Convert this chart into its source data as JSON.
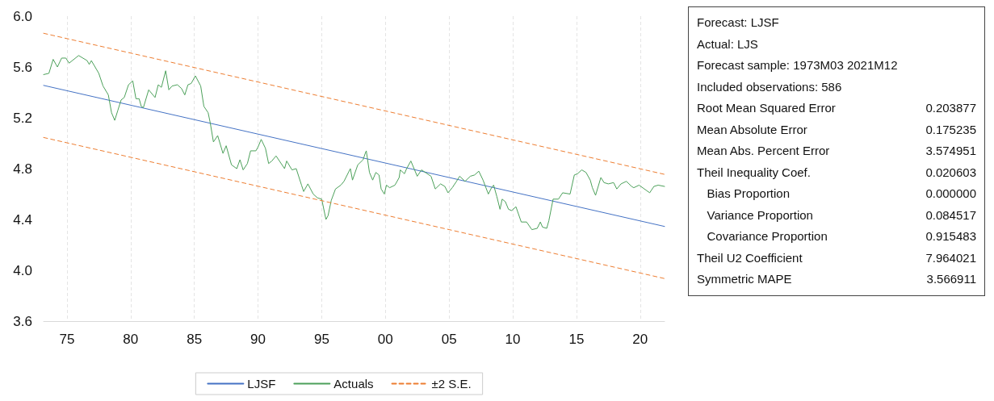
{
  "chart_data": {
    "type": "line",
    "marker": "none",
    "grid": "x",
    "legend": "bottom",
    "xlim": [
      "1973-03",
      "2021-12"
    ],
    "xticks": [
      {
        "value": "1975",
        "label": "75"
      },
      {
        "value": "1980",
        "label": "80"
      },
      {
        "value": "1985",
        "label": "85"
      },
      {
        "value": "1990",
        "label": "90"
      },
      {
        "value": "1995",
        "label": "95"
      },
      {
        "value": "2000",
        "label": "00"
      },
      {
        "value": "2005",
        "label": "05"
      },
      {
        "value": "2010",
        "label": "10"
      },
      {
        "value": "2015",
        "label": "15"
      },
      {
        "value": "2020",
        "label": "20"
      }
    ],
    "ylim": [
      3.6,
      6.0
    ],
    "yticks": [
      3.6,
      {
        "value": 4,
        "label": "4.0"
      },
      4.4,
      4.8,
      5.2,
      5.6,
      {
        "value": 6,
        "label": "6.0"
      }
    ],
    "series": [
      {
        "name": "LJSF",
        "color": "#4472c4",
        "line_style": "solid",
        "x": [
          "1973-03",
          "2021-12"
        ],
        "values": [
          5.455,
          4.345
        ]
      },
      {
        "name": "Actuals",
        "color": "#4ca05a",
        "line_style": "solid",
        "x": [
          "1973-03",
          "1973-08",
          "1973-12",
          "1974-04",
          "1974-08",
          "1974-12",
          "1975-03",
          "1975-12",
          "1976-08",
          "1976-10",
          "1976-12",
          "1977-07",
          "1977-11",
          "1978-04",
          "1978-07",
          "1978-10",
          "1979-01",
          "1979-04",
          "1979-07",
          "1979-11",
          "1980-03",
          "1980-06",
          "1980-09",
          "1980-11",
          "1981-01",
          "1981-06",
          "1981-12",
          "1982-03",
          "1982-06",
          "1982-10",
          "1983-01",
          "1983-04",
          "1983-09",
          "1984-01",
          "1984-04",
          "1984-07",
          "1984-10",
          "1985-02",
          "1985-07",
          "1985-10",
          "1986-02",
          "1986-04",
          "1986-07",
          "1986-11",
          "1987-04",
          "1987-07",
          "1987-12",
          "1988-05",
          "1988-08",
          "1988-11",
          "1989-03",
          "1989-06",
          "1989-11",
          "1990-01",
          "1990-04",
          "1990-08",
          "1990-11",
          "1991-02",
          "1991-06",
          "1992-02",
          "1992-04",
          "1992-09",
          "1993-01",
          "1993-06",
          "1993-08",
          "1993-12",
          "1994-05",
          "1994-09",
          "1995-01",
          "1995-05",
          "1995-07",
          "1995-10",
          "1996-02",
          "1996-07",
          "1996-10",
          "1997-04",
          "1997-06",
          "1997-11",
          "1998-04",
          "1998-06",
          "1998-07",
          "1998-10",
          "1999-01",
          "1999-04",
          "1999-07",
          "1999-09",
          "1999-12",
          "2000-02",
          "2000-05",
          "2000-10",
          "2001-02",
          "2001-03",
          "2001-07",
          "2001-09",
          "2002-01",
          "2002-04",
          "2002-07",
          "2002-11",
          "2003-08",
          "2003-12",
          "2004-05",
          "2004-09",
          "2004-12",
          "2005-04",
          "2005-08",
          "2005-11",
          "2006-04",
          "2006-09",
          "2007-01",
          "2007-05",
          "2007-09",
          "2008-02",
          "2008-05",
          "2008-07",
          "2008-10",
          "2009-01",
          "2009-03",
          "2009-06",
          "2009-09",
          "2009-12",
          "2010-04",
          "2010-09",
          "2011-02",
          "2011-07",
          "2011-12",
          "2012-03",
          "2012-05",
          "2012-09",
          "2012-11",
          "2013-03",
          "2013-08",
          "2013-12",
          "2014-07",
          "2014-11",
          "2015-02",
          "2015-06",
          "2015-10",
          "2016-02",
          "2016-04",
          "2016-07",
          "2016-12",
          "2017-03",
          "2017-07",
          "2017-12",
          "2018-03",
          "2018-07",
          "2018-12",
          "2019-05",
          "2019-07",
          "2019-12",
          "2020-05",
          "2020-10",
          "2021-02",
          "2021-06",
          "2021-12"
        ],
        "values": [
          5.54,
          5.55,
          5.66,
          5.6,
          5.67,
          5.67,
          5.63,
          5.69,
          5.65,
          5.62,
          5.65,
          5.55,
          5.45,
          5.38,
          5.24,
          5.18,
          5.26,
          5.34,
          5.36,
          5.46,
          5.49,
          5.35,
          5.35,
          5.29,
          5.28,
          5.42,
          5.36,
          5.46,
          5.44,
          5.57,
          5.42,
          5.45,
          5.46,
          5.43,
          5.38,
          5.46,
          5.47,
          5.53,
          5.45,
          5.29,
          5.24,
          5.16,
          5.01,
          5.06,
          4.92,
          4.98,
          4.83,
          4.8,
          4.87,
          4.79,
          4.84,
          4.94,
          4.94,
          4.97,
          5.03,
          4.96,
          4.84,
          4.86,
          4.9,
          4.8,
          4.86,
          4.79,
          4.8,
          4.67,
          4.62,
          4.68,
          4.6,
          4.57,
          4.56,
          4.4,
          4.43,
          4.55,
          4.64,
          4.67,
          4.7,
          4.8,
          4.71,
          4.83,
          4.87,
          4.92,
          4.94,
          4.77,
          4.71,
          4.77,
          4.75,
          4.64,
          4.6,
          4.67,
          4.65,
          4.67,
          4.73,
          4.79,
          4.76,
          4.8,
          4.86,
          4.8,
          4.74,
          4.79,
          4.74,
          4.64,
          4.68,
          4.66,
          4.61,
          4.65,
          4.7,
          4.74,
          4.7,
          4.74,
          4.75,
          4.78,
          4.71,
          4.6,
          4.65,
          4.67,
          4.58,
          4.48,
          4.56,
          4.54,
          4.48,
          4.47,
          4.5,
          4.38,
          4.38,
          4.32,
          4.33,
          4.38,
          4.34,
          4.33,
          4.39,
          4.56,
          4.56,
          4.61,
          4.6,
          4.75,
          4.76,
          4.79,
          4.77,
          4.71,
          4.65,
          4.59,
          4.73,
          4.69,
          4.68,
          4.69,
          4.64,
          4.68,
          4.7,
          4.66,
          4.65,
          4.67,
          4.64,
          4.61,
          4.66,
          4.67,
          4.66
        ]
      },
      {
        "name": "±2 S.E.",
        "color": "#ed7d31",
        "line_style": "dashed",
        "x": [
          "1973-03",
          "2021-12"
        ],
        "values": [
          5.865,
          4.755
        ]
      },
      {
        "color": "#ed7d31",
        "line_style": "dashed",
        "x": [
          "1973-03",
          "2021-12"
        ],
        "values": [
          5.045,
          3.935
        ]
      }
    ],
    "annotations": [
      "Forecast: LJSF",
      "Actual: LJS",
      "Forecast sample: 1973M03 2021M12",
      "Included observations: 586",
      "Root Mean Squared Error 0.203877",
      "Mean Absolute Error 0.175235",
      "Mean Abs. Percent Error 3.574951",
      "Theil Inequality Coef. 0.020603",
      "   Bias Proportion 0.000000",
      "   Variance Proportion 0.084517",
      "   Covariance Proportion 0.915483",
      "Theil U2 Coefficient 7.964021",
      "Symmetric MAPE 3.566911"
    ]
  }
}
